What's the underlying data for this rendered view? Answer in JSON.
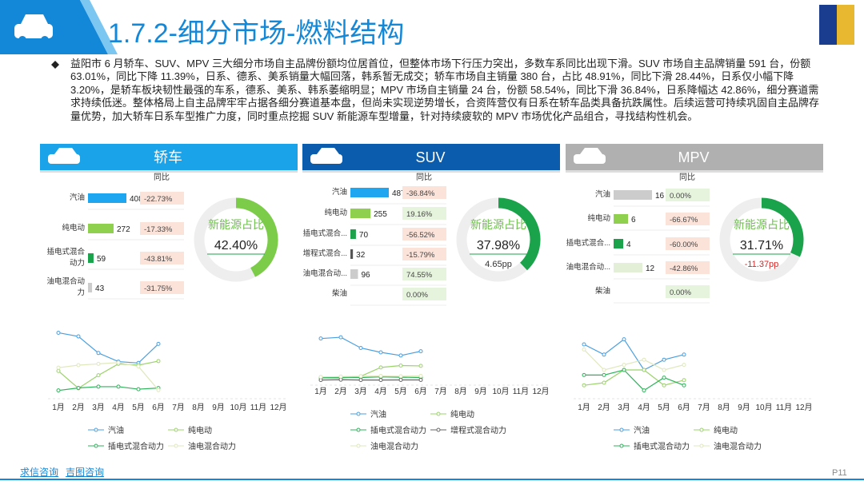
{
  "header": {
    "title": "1.7.2-细分市场-燃料结构"
  },
  "summary": "益阳市 6 月轿车、SUV、MPV 三大细分市场自主品牌份额均位居首位，但整体市场下行压力突出，多数车系同比出现下滑。SUV 市场自主品牌销量 591 台，份额 63.01%，同比下降 11.39%，日系、德系、美系销量大幅回落，韩系暂无成交；轿车市场自主销量 380 台，占比 48.91%，同比下滑 28.44%，日系仅小幅下降 3.20%，是轿车板块韧性最强的车系，德系、美系、韩系萎缩明显；MPV 市场自主销量 24 台，份额 58.54%，同比下滑 36.84%，日系降幅达 42.86%，细分赛道需求持续低迷。整体格局上自主品牌牢牢占据各细分赛道基本盘，但尚未实现逆势增长，合资阵营仅有日系在轿车品类具备抗跌属性。后续运营可持续巩固自主品牌存量优势，加大轿车日系车型推广力度，同时重点挖掘 SUV 新能源车型增量，针对持续疲软的 MPV 市场优化产品组合，寻找结构性机会。",
  "panels": [
    {
      "title": "轿车",
      "yoy_header": "同比",
      "bars": {
        "categories": [
          "汽油",
          "纯电动",
          "插电式混合动力",
          "油电混合动力"
        ],
        "values": [
          408,
          272,
          59,
          43
        ],
        "yoy": [
          "-22.73%",
          "-17.33%",
          "-43.81%",
          "-31.75%"
        ],
        "colors": [
          "#1ea7f0",
          "#8fd14f",
          "#1aa34a",
          "#cccccc"
        ]
      },
      "donut": {
        "label": "新能源占比",
        "value": 42.4,
        "value_label": "42.40%",
        "color": "#7ccc4a"
      },
      "line_chart": {
        "type": "line",
        "categories": [
          "1月",
          "2月",
          "3月",
          "4月",
          "5月",
          "6月",
          "7月",
          "8月",
          "9月",
          "10月",
          "11月",
          "12月"
        ],
        "ylim": [
          0,
          600
        ],
        "series": [
          {
            "name": "汽油",
            "color": "#4a9fe0",
            "values": [
              496,
              467,
              336,
              268,
              257,
              408,
              null,
              null,
              null,
              null,
              null,
              null
            ]
          },
          {
            "name": "纯电动",
            "color": "#9bd36a",
            "values": [
              194,
              57,
              160,
              250,
              240,
              272,
              null,
              null,
              null,
              null,
              null,
              null
            ]
          },
          {
            "name": "插电式混合动力",
            "color": "#2eb35a",
            "values": [
              40,
              60,
              70,
              70,
              50,
              59,
              null,
              null,
              null,
              null,
              null,
              null
            ]
          },
          {
            "name": "油电混合动力",
            "color": "#dfe8bc",
            "values": [
              220,
              240,
              250,
              260,
              230,
              43,
              null,
              null,
              null,
              null,
              null,
              null
            ]
          }
        ]
      }
    },
    {
      "title": "SUV",
      "yoy_header": "同比",
      "bars": {
        "categories": [
          "汽油",
          "纯电动",
          "插电式混合...",
          "增程式混合...",
          "油电混合动...",
          "柴油"
        ],
        "values": [
          487,
          255,
          70,
          32,
          96,
          null
        ],
        "yoy": [
          "-36.84%",
          "19.16%",
          "-56.52%",
          "-15.79%",
          "74.55%",
          "0.00%"
        ],
        "colors": [
          "#1ea7f0",
          "#8fd14f",
          "#1aa34a",
          "#555555",
          "#cccccc",
          "#cccccc"
        ]
      },
      "donut": {
        "label": "新能源占比",
        "value": 37.98,
        "value_label": "37.98%",
        "note": "4.65pp",
        "color": "#1aa34a"
      },
      "line_chart": {
        "type": "line",
        "categories": [
          "1月",
          "2月",
          "3月",
          "4月",
          "5月",
          "6月",
          "7月",
          "8月",
          "9月",
          "10月",
          "11月",
          "12月"
        ],
        "ylim": [
          0,
          800
        ],
        "series": [
          {
            "name": "汽油",
            "color": "#4a9fe0",
            "values": [
              690,
              710,
              540,
              470,
              420,
              487,
              null,
              null,
              null,
              null,
              null,
              null
            ]
          },
          {
            "name": "纯电动",
            "color": "#9bd36a",
            "values": [
              60,
              60,
              90,
              230,
              260,
              255,
              null,
              null,
              null,
              null,
              null,
              null
            ]
          },
          {
            "name": "插电式混合动力",
            "color": "#2eb35a",
            "values": [
              70,
              75,
              70,
              80,
              75,
              70,
              null,
              null,
              null,
              null,
              null,
              null
            ]
          },
          {
            "name": "增程式混合动力",
            "color": "#666666",
            "values": [
              30,
              35,
              30,
              30,
              32,
              32,
              null,
              null,
              null,
              null,
              null,
              null
            ]
          },
          {
            "name": "油电混合动力",
            "color": "#dfe8bc",
            "values": [
              80,
              85,
              90,
              95,
              90,
              96,
              null,
              null,
              null,
              null,
              null,
              null
            ]
          }
        ]
      }
    },
    {
      "title": "MPV",
      "yoy_header": "同比",
      "bars": {
        "categories": [
          "汽油",
          "纯电动",
          "插电式混合...",
          "油电混合动...",
          "柴油"
        ],
        "values": [
          16,
          6,
          4,
          12,
          null
        ],
        "yoy": [
          "0.00%",
          "-66.67%",
          "-60.00%",
          "-42.86%",
          "0.00%"
        ],
        "colors": [
          "#cccccc",
          "#8fd14f",
          "#1aa34a",
          "#e4efd8",
          "#cccccc"
        ]
      },
      "donut": {
        "label": "新能源占比",
        "value": 31.71,
        "value_label": "31.71%",
        "note": "-11.37pp",
        "color": "#1aa34a"
      },
      "line_chart": {
        "type": "line",
        "categories": [
          "1月",
          "2月",
          "3月",
          "4月",
          "5月",
          "6月",
          "7月",
          "8月",
          "9月",
          "10月",
          "11月",
          "12月"
        ],
        "ylim": [
          0,
          25
        ],
        "series": [
          {
            "name": "汽油",
            "color": "#4a9fe0",
            "values": [
              20,
              16,
              22,
              10,
              14,
              16,
              null,
              null,
              null,
              null,
              null,
              null
            ]
          },
          {
            "name": "纯电动",
            "color": "#9bd36a",
            "values": [
              4,
              5,
              10,
              10,
              4,
              6,
              null,
              null,
              null,
              null,
              null,
              null
            ]
          },
          {
            "name": "插电式混合动力",
            "color": "#2eb35a",
            "values": [
              8,
              8,
              10,
              2,
              7,
              4,
              null,
              null,
              null,
              null,
              null,
              null
            ]
          },
          {
            "name": "油电混合动力",
            "color": "#dfe8bc",
            "values": [
              18,
              10,
              12,
              14,
              10,
              12,
              null,
              null,
              null,
              null,
              null,
              null
            ]
          }
        ]
      }
    }
  ],
  "footer": {
    "links": [
      "求信咨询",
      "吉图咨询"
    ],
    "page": "P11"
  }
}
